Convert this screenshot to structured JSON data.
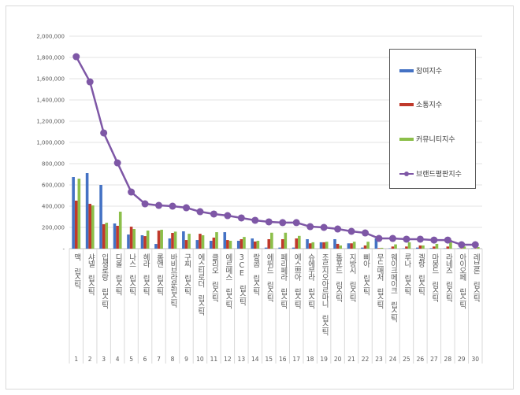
{
  "chart_data": {
    "type": "bar",
    "title": "",
    "xlabel": "",
    "ylabel": "",
    "ylim": [
      0,
      2000000
    ],
    "yticks": [
      "-",
      "200,000",
      "400,000",
      "600,000",
      "800,000",
      "1,000,000",
      "1,200,000",
      "1,400,000",
      "1,600,000",
      "1,800,000",
      "2,000,000"
    ],
    "grid": true,
    "legend_position": "right",
    "ranks": [
      "1",
      "2",
      "3",
      "4",
      "5",
      "6",
      "7",
      "8",
      "9",
      "10",
      "11",
      "12",
      "13",
      "14",
      "15",
      "16",
      "17",
      "18",
      "19",
      "20",
      "21",
      "22",
      "23",
      "24",
      "25",
      "26",
      "27",
      "28",
      "29",
      "30"
    ],
    "categories": [
      "맥 립스틱",
      "샤넬 립스틱",
      "입생로랑 립스틱",
      "디올 립스틱",
      "나스 립스틱",
      "헤라 립스틱",
      "롬앤 립스틱",
      "바비브라운립스틱",
      "구찌 립스틱",
      "에스티로더 립스틱",
      "클리오 립스틱",
      "에르메스 립스틱",
      "3CE 립스틱",
      "랑콤 립스틱",
      "에뛰드 립스틱",
      "페리페라 립스틱",
      "에스쁘아 립스틱",
      "슈에무라 립스틱",
      "조르지오아르마니 립스틱",
      "톰포드 립스틱",
      "지방시 립스틱",
      "삐아 립스틱",
      "무드매처 립스틱",
      "웨이크메이크 립스틱",
      "루나 립스틱",
      "겔랑 립스틱",
      "마몽드 립스틱",
      "라네즈 립스틱",
      "아이오페 립스틱",
      "레브론 립스틱"
    ],
    "series": [
      {
        "name": "참여지수",
        "kind": "bar",
        "color": "#4472c4",
        "values": [
          674000,
          711000,
          600000,
          237000,
          133000,
          126000,
          44000,
          96000,
          163000,
          81000,
          74000,
          155000,
          74000,
          96000,
          10000,
          10000,
          10000,
          89000,
          60000,
          89000,
          50000,
          10000,
          96000,
          3000,
          3000,
          10000,
          5000,
          3000,
          3000,
          3000
        ]
      },
      {
        "name": "소통지수",
        "kind": "bar",
        "color": "#c0392b",
        "values": [
          452000,
          422000,
          230000,
          215000,
          207000,
          118000,
          170000,
          148000,
          81000,
          140000,
          104000,
          81000,
          89000,
          67000,
          89000,
          89000,
          96000,
          50000,
          60000,
          45000,
          50000,
          30000,
          5000,
          20000,
          20000,
          30000,
          20000,
          20000,
          3000,
          3000
        ]
      },
      {
        "name": "커뮤니티지수",
        "kind": "bar",
        "color": "#8cbf4a",
        "values": [
          659000,
          407000,
          244000,
          348000,
          185000,
          170000,
          178000,
          160000,
          140000,
          126000,
          155000,
          74000,
          110000,
          74000,
          150000,
          150000,
          120000,
          60000,
          65000,
          30000,
          65000,
          65000,
          8000,
          40000,
          60000,
          30000,
          45000,
          80000,
          20000,
          15000
        ]
      },
      {
        "name": "브랜드평판지수",
        "kind": "line",
        "color": "#7e57a6",
        "values": [
          1807000,
          1570000,
          1089000,
          807000,
          533000,
          422000,
          407000,
          400000,
          385000,
          348000,
          326000,
          311000,
          289000,
          267000,
          252000,
          245000,
          245000,
          207000,
          200000,
          185000,
          163000,
          148000,
          96000,
          96000,
          89000,
          89000,
          81000,
          81000,
          37000,
          37000
        ]
      }
    ]
  }
}
